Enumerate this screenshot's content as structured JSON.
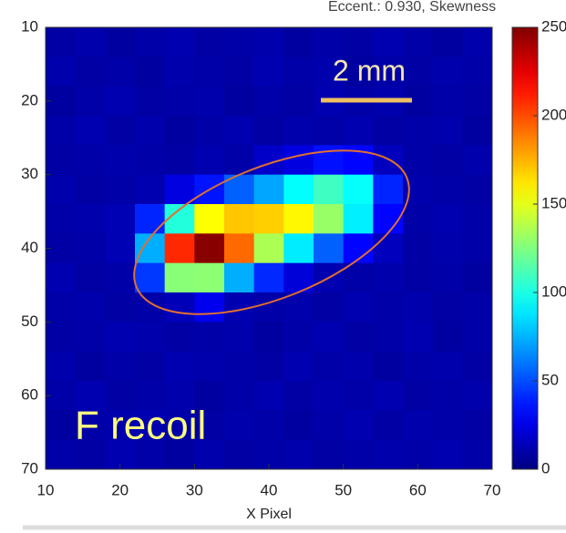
{
  "chart_data": {
    "type": "heatmap",
    "title": "Eccent.: 0.930,   Skewness",
    "xlabel": "X Pixel",
    "x": [
      12,
      16,
      20,
      24,
      28,
      32,
      36,
      40,
      44,
      48,
      52,
      56,
      60,
      64,
      68
    ],
    "y": [
      12,
      16,
      20,
      24,
      28,
      32,
      36,
      40,
      44,
      48,
      52,
      56,
      60,
      64,
      68
    ],
    "z": [
      [
        9,
        11,
        8,
        10,
        12,
        9,
        10,
        11,
        8,
        10,
        9,
        12,
        10,
        8,
        11
      ],
      [
        11,
        9,
        10,
        8,
        11,
        10,
        9,
        12,
        10,
        11,
        8,
        10,
        9,
        11,
        10
      ],
      [
        8,
        10,
        12,
        9,
        10,
        11,
        8,
        10,
        9,
        12,
        10,
        11,
        8,
        10,
        9
      ],
      [
        10,
        12,
        9,
        11,
        8,
        10,
        12,
        9,
        11,
        10,
        12,
        9,
        10,
        11,
        8
      ],
      [
        9,
        10,
        11,
        10,
        9,
        12,
        10,
        18,
        24,
        35,
        32,
        15,
        10,
        9,
        11
      ],
      [
        11,
        9,
        10,
        12,
        24,
        36,
        55,
        72,
        94,
        109,
        95,
        40,
        11,
        10,
        9
      ],
      [
        10,
        11,
        13,
        40,
        102,
        156,
        170,
        168,
        158,
        131,
        90,
        32,
        10,
        12,
        10
      ],
      [
        9,
        10,
        13,
        74,
        209,
        248,
        193,
        136,
        89,
        55,
        32,
        15,
        9,
        11,
        10
      ],
      [
        12,
        9,
        10,
        45,
        127,
        128,
        74,
        41,
        22,
        12,
        10,
        11,
        9,
        10,
        8
      ],
      [
        10,
        11,
        9,
        10,
        14,
        27,
        12,
        10,
        11,
        9,
        12,
        10,
        11,
        9,
        10
      ],
      [
        9,
        10,
        12,
        11,
        9,
        10,
        11,
        8,
        10,
        12,
        9,
        10,
        12,
        8,
        10
      ],
      [
        11,
        8,
        10,
        9,
        12,
        11,
        10,
        9,
        12,
        10,
        11,
        8,
        10,
        11,
        9
      ],
      [
        10,
        12,
        9,
        10,
        11,
        8,
        10,
        12,
        9,
        11,
        10,
        12,
        9,
        10,
        11
      ],
      [
        8,
        10,
        11,
        12,
        10,
        9,
        11,
        10,
        8,
        10,
        12,
        9,
        11,
        10,
        9
      ],
      [
        10,
        9,
        12,
        10,
        8,
        11,
        9,
        10,
        11,
        9,
        10,
        11,
        10,
        12,
        10
      ]
    ],
    "xlim": [
      10,
      70
    ],
    "ylim": [
      10,
      70
    ],
    "y_inverted": true,
    "xticks": [
      10,
      20,
      30,
      40,
      50,
      60,
      70
    ],
    "yticks": [
      10,
      20,
      30,
      40,
      50,
      60,
      70
    ],
    "colormap": "jet",
    "clim": [
      0,
      250
    ],
    "colorbar_ticks": [
      0,
      50,
      100,
      150,
      200,
      250
    ],
    "annotations": {
      "label": "F recoil",
      "scale_bar": "2 mm"
    }
  }
}
